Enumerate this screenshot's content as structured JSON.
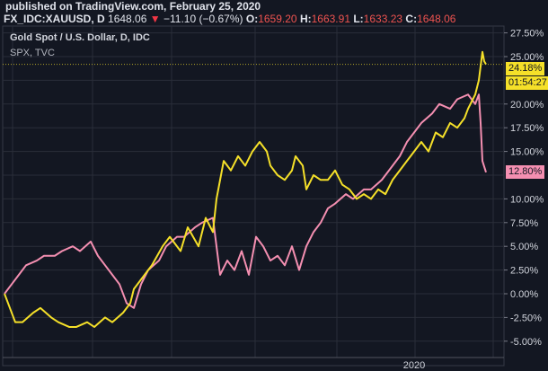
{
  "header": {
    "published": "published on TradingView.com, February 25, 2020",
    "symbol": "FX_IDC:XAUUSD, D",
    "last": "1648.06",
    "change": "−11.10 (−0.67%)",
    "o_label": "O:",
    "o": "1659.20",
    "h_label": "H:",
    "h": "1663.91",
    "l_label": "L:",
    "l": "1633.23",
    "c_label": "C:",
    "c": "1648.06",
    "down_icon": "triangle-down-icon"
  },
  "legend": {
    "main": "Gold Spot / U.S. Dollar, D, IDC",
    "compare": "SPX, TVC"
  },
  "price_tags": {
    "gold": "24.18%",
    "countdown": "01:54:27",
    "spx": "12.80%"
  },
  "colors": {
    "gold": "#f5e029",
    "spx": "#f48fb1",
    "background": "#131722",
    "grid": "#2a2e39"
  },
  "chart_data": {
    "type": "line",
    "yaxis_unit": "%",
    "yticks": [
      "27.50%",
      "25.00%",
      "20.00%",
      "17.50%",
      "15.00%",
      "10.00%",
      "7.50%",
      "5.00%",
      "2.50%",
      "0.00%",
      "-2.50%",
      "-5.00%"
    ],
    "ytick_values": [
      27.5,
      25,
      20,
      17.5,
      15,
      10,
      7.5,
      5,
      2.5,
      0,
      -2.5,
      -5
    ],
    "ylim": [
      -6.5,
      28.5
    ],
    "xticks": [
      {
        "x": 114,
        "label": "2020"
      }
    ],
    "grid": true,
    "series": [
      {
        "name": "Gold Spot / U.S. Dollar, D, IDC",
        "color": "#f5e029",
        "points": [
          [
            0,
            0
          ],
          [
            1,
            -1
          ],
          [
            3,
            -3
          ],
          [
            5,
            -3
          ],
          [
            8,
            -2
          ],
          [
            10,
            -1.5
          ],
          [
            13,
            -2.5
          ],
          [
            15,
            -3
          ],
          [
            18,
            -3.5
          ],
          [
            20,
            -3.5
          ],
          [
            23,
            -3
          ],
          [
            25,
            -3.5
          ],
          [
            28,
            -2.5
          ],
          [
            30,
            -3
          ],
          [
            33,
            -2
          ],
          [
            35,
            -1
          ],
          [
            36,
            0.5
          ],
          [
            39,
            2
          ],
          [
            41,
            3
          ],
          [
            44,
            5
          ],
          [
            46,
            6
          ],
          [
            49,
            4.5
          ],
          [
            51,
            7
          ],
          [
            54,
            5
          ],
          [
            56,
            8
          ],
          [
            58,
            6.5
          ],
          [
            59,
            10
          ],
          [
            61,
            14
          ],
          [
            63,
            13
          ],
          [
            65,
            14.5
          ],
          [
            67,
            13.5
          ],
          [
            69,
            15
          ],
          [
            71,
            16
          ],
          [
            73,
            15
          ],
          [
            74,
            13.5
          ],
          [
            76,
            12.5
          ],
          [
            78,
            12
          ],
          [
            80,
            13
          ],
          [
            81,
            14.5
          ],
          [
            83,
            13.5
          ],
          [
            84,
            11
          ],
          [
            86,
            12.5
          ],
          [
            88,
            12
          ],
          [
            90,
            12
          ],
          [
            92,
            13
          ],
          [
            94,
            11.5
          ],
          [
            96,
            11
          ],
          [
            98,
            10
          ],
          [
            100,
            10.5
          ],
          [
            102,
            10
          ],
          [
            104,
            11
          ],
          [
            106,
            10.5
          ],
          [
            108,
            12
          ],
          [
            110,
            13
          ],
          [
            112,
            14
          ],
          [
            114,
            15
          ],
          [
            116,
            16
          ],
          [
            118,
            15
          ],
          [
            120,
            17
          ],
          [
            122,
            16.5
          ],
          [
            124,
            18
          ],
          [
            126,
            17.5
          ],
          [
            128,
            18.5
          ],
          [
            129,
            19.5
          ],
          [
            131,
            21
          ],
          [
            132,
            22.5
          ],
          [
            133,
            25.5
          ],
          [
            133.5,
            24.5
          ],
          [
            134,
            24.18
          ]
        ]
      },
      {
        "name": "SPX, TVC",
        "color": "#f48fb1",
        "points": [
          [
            0,
            0
          ],
          [
            2,
            1
          ],
          [
            4,
            2
          ],
          [
            6,
            3
          ],
          [
            9,
            3.5
          ],
          [
            11,
            4
          ],
          [
            14,
            4
          ],
          [
            16,
            4.5
          ],
          [
            19,
            5
          ],
          [
            21,
            4.5
          ],
          [
            24,
            5.5
          ],
          [
            26,
            4
          ],
          [
            28,
            3
          ],
          [
            30,
            2
          ],
          [
            32,
            1
          ],
          [
            34,
            -1
          ],
          [
            36,
            -1.5
          ],
          [
            38,
            1
          ],
          [
            40,
            2.5
          ],
          [
            43,
            3.5
          ],
          [
            45,
            5
          ],
          [
            48,
            6
          ],
          [
            50,
            6
          ],
          [
            53,
            7
          ],
          [
            55,
            7.5
          ],
          [
            58,
            8
          ],
          [
            59,
            5
          ],
          [
            60,
            2
          ],
          [
            62,
            3.5
          ],
          [
            64,
            2.5
          ],
          [
            66,
            4.5
          ],
          [
            68,
            2
          ],
          [
            70,
            6
          ],
          [
            72,
            5
          ],
          [
            74,
            3.5
          ],
          [
            76,
            4
          ],
          [
            78,
            3
          ],
          [
            80,
            5
          ],
          [
            82,
            2.5
          ],
          [
            84,
            5
          ],
          [
            86,
            6.5
          ],
          [
            88,
            7.5
          ],
          [
            90,
            9
          ],
          [
            92,
            9.5
          ],
          [
            95,
            10.5
          ],
          [
            97,
            10
          ],
          [
            100,
            11
          ],
          [
            102,
            11
          ],
          [
            105,
            12
          ],
          [
            107,
            13
          ],
          [
            110,
            14.5
          ],
          [
            112,
            16
          ],
          [
            114,
            17
          ],
          [
            116,
            18
          ],
          [
            119,
            19
          ],
          [
            121,
            20
          ],
          [
            124,
            19.5
          ],
          [
            126,
            20.5
          ],
          [
            129,
            21
          ],
          [
            131,
            20
          ],
          [
            132,
            21
          ],
          [
            132.5,
            18
          ],
          [
            133,
            14
          ],
          [
            134,
            12.8
          ]
        ]
      }
    ]
  }
}
